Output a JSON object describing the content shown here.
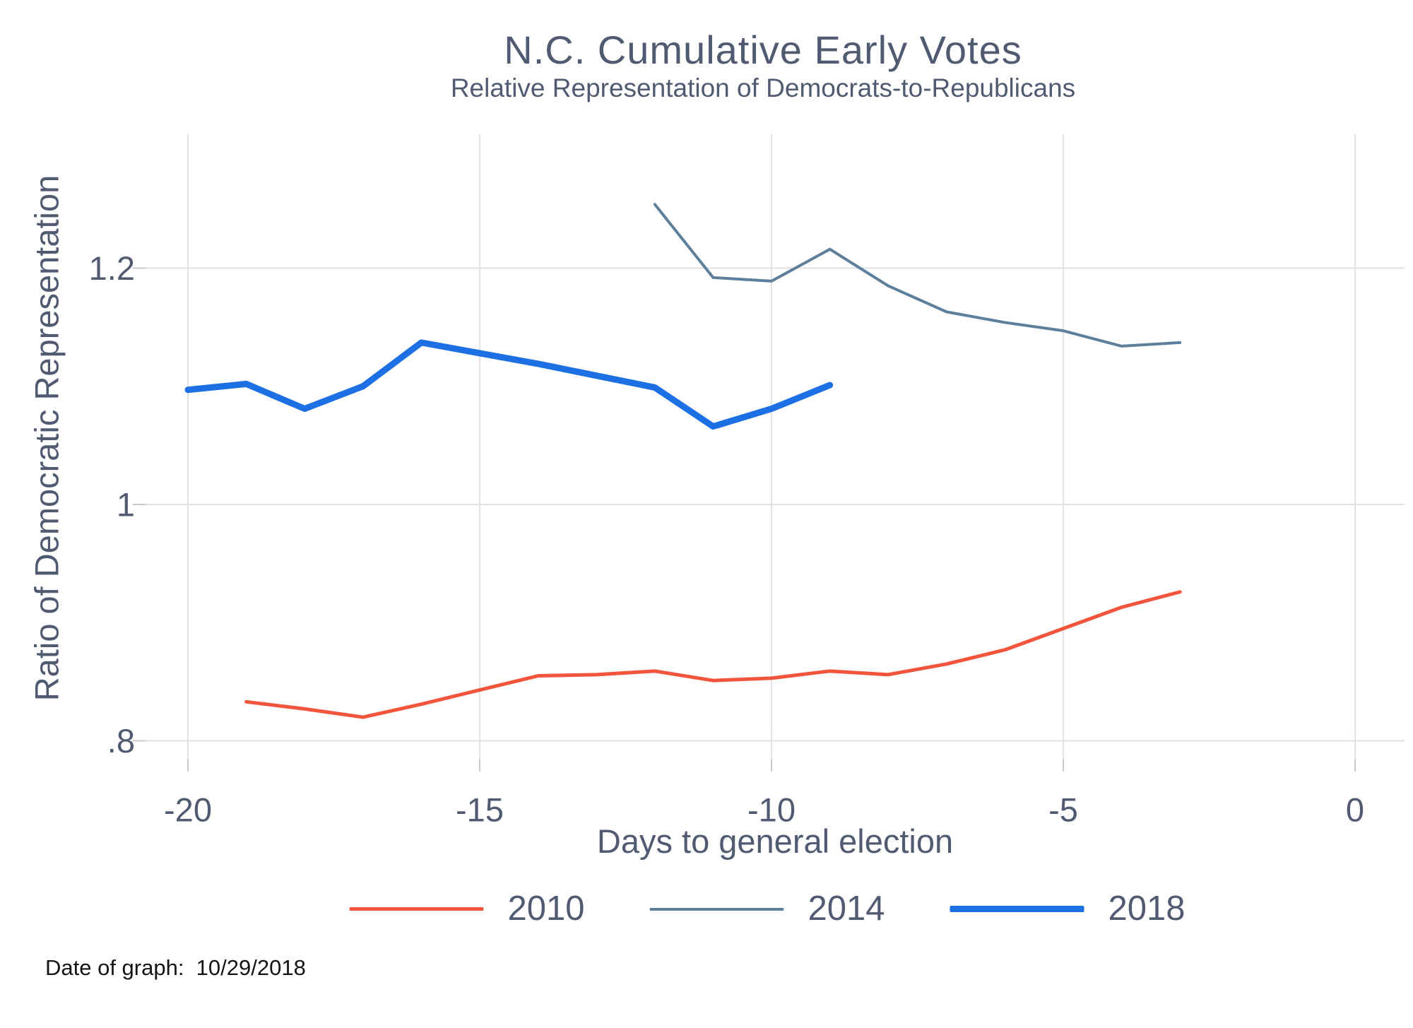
{
  "footer": {
    "note": "Date of graph:  10/29/2018"
  },
  "colors": {
    "text": "#505b72",
    "gridline": "#e2e2e6",
    "tick": "#c4c8cf",
    "background": "#ffffff",
    "series_2010": "#f3553c",
    "series_2014": "#5d7f9b",
    "series_2018": "#1d6fe4"
  },
  "chart_data": {
    "type": "line",
    "title": "N.C. Cumulative Early Votes",
    "subtitle": "Relative Representation of Democrats-to-Republicans",
    "xlabel": "Days to general election",
    "ylabel": "Ratio of Democratic Representation",
    "xlim": [
      -20.7,
      0.85
    ],
    "ylim": [
      0.784,
      1.313
    ],
    "grid": true,
    "legend_position": "bottom",
    "x_ticks": [
      {
        "value": -20,
        "label": "-20"
      },
      {
        "value": -15,
        "label": "-15"
      },
      {
        "value": -10,
        "label": "-10"
      },
      {
        "value": -5,
        "label": "-5"
      },
      {
        "value": 0,
        "label": "0"
      }
    ],
    "y_ticks": [
      {
        "value": 0.8,
        "label": ".8"
      },
      {
        "value": 1.0,
        "label": "1"
      },
      {
        "value": 1.2,
        "label": "1.2"
      }
    ],
    "series": [
      {
        "name": "2010",
        "color": "#f3553c",
        "line_width": 5,
        "points": [
          [
            -19,
            0.833
          ],
          [
            -18,
            0.827
          ],
          [
            -17,
            0.82
          ],
          [
            -16,
            0.831
          ],
          [
            -15,
            0.843
          ],
          [
            -14,
            0.855
          ],
          [
            -13,
            0.856
          ],
          [
            -12,
            0.859
          ],
          [
            -11,
            0.851
          ],
          [
            -10,
            0.853
          ],
          [
            -9,
            0.859
          ],
          [
            -8,
            0.856
          ],
          [
            -7,
            0.865
          ],
          [
            -6,
            0.877
          ],
          [
            -5,
            0.895
          ],
          [
            -4,
            0.913
          ],
          [
            -3,
            0.926
          ]
        ]
      },
      {
        "name": "2014",
        "color": "#5d7f9b",
        "line_width": 4,
        "points": [
          [
            -12,
            1.254
          ],
          [
            -11,
            1.192
          ],
          [
            -10,
            1.189
          ],
          [
            -9,
            1.216
          ],
          [
            -8,
            1.185
          ],
          [
            -7,
            1.163
          ],
          [
            -6,
            1.154
          ],
          [
            -5,
            1.147
          ],
          [
            -4,
            1.134
          ],
          [
            -3,
            1.137
          ]
        ]
      },
      {
        "name": "2018",
        "color": "#1d6fe4",
        "line_width": 9,
        "points": [
          [
            -20,
            1.097
          ],
          [
            -19,
            1.102
          ],
          [
            -18,
            1.081
          ],
          [
            -17,
            1.1
          ],
          [
            -16,
            1.137
          ],
          [
            -15,
            1.128
          ],
          [
            -14,
            1.119
          ],
          [
            -13,
            1.109
          ],
          [
            -12,
            1.099
          ],
          [
            -11,
            1.066
          ],
          [
            -10,
            1.081
          ],
          [
            -9,
            1.101
          ]
        ]
      }
    ]
  }
}
